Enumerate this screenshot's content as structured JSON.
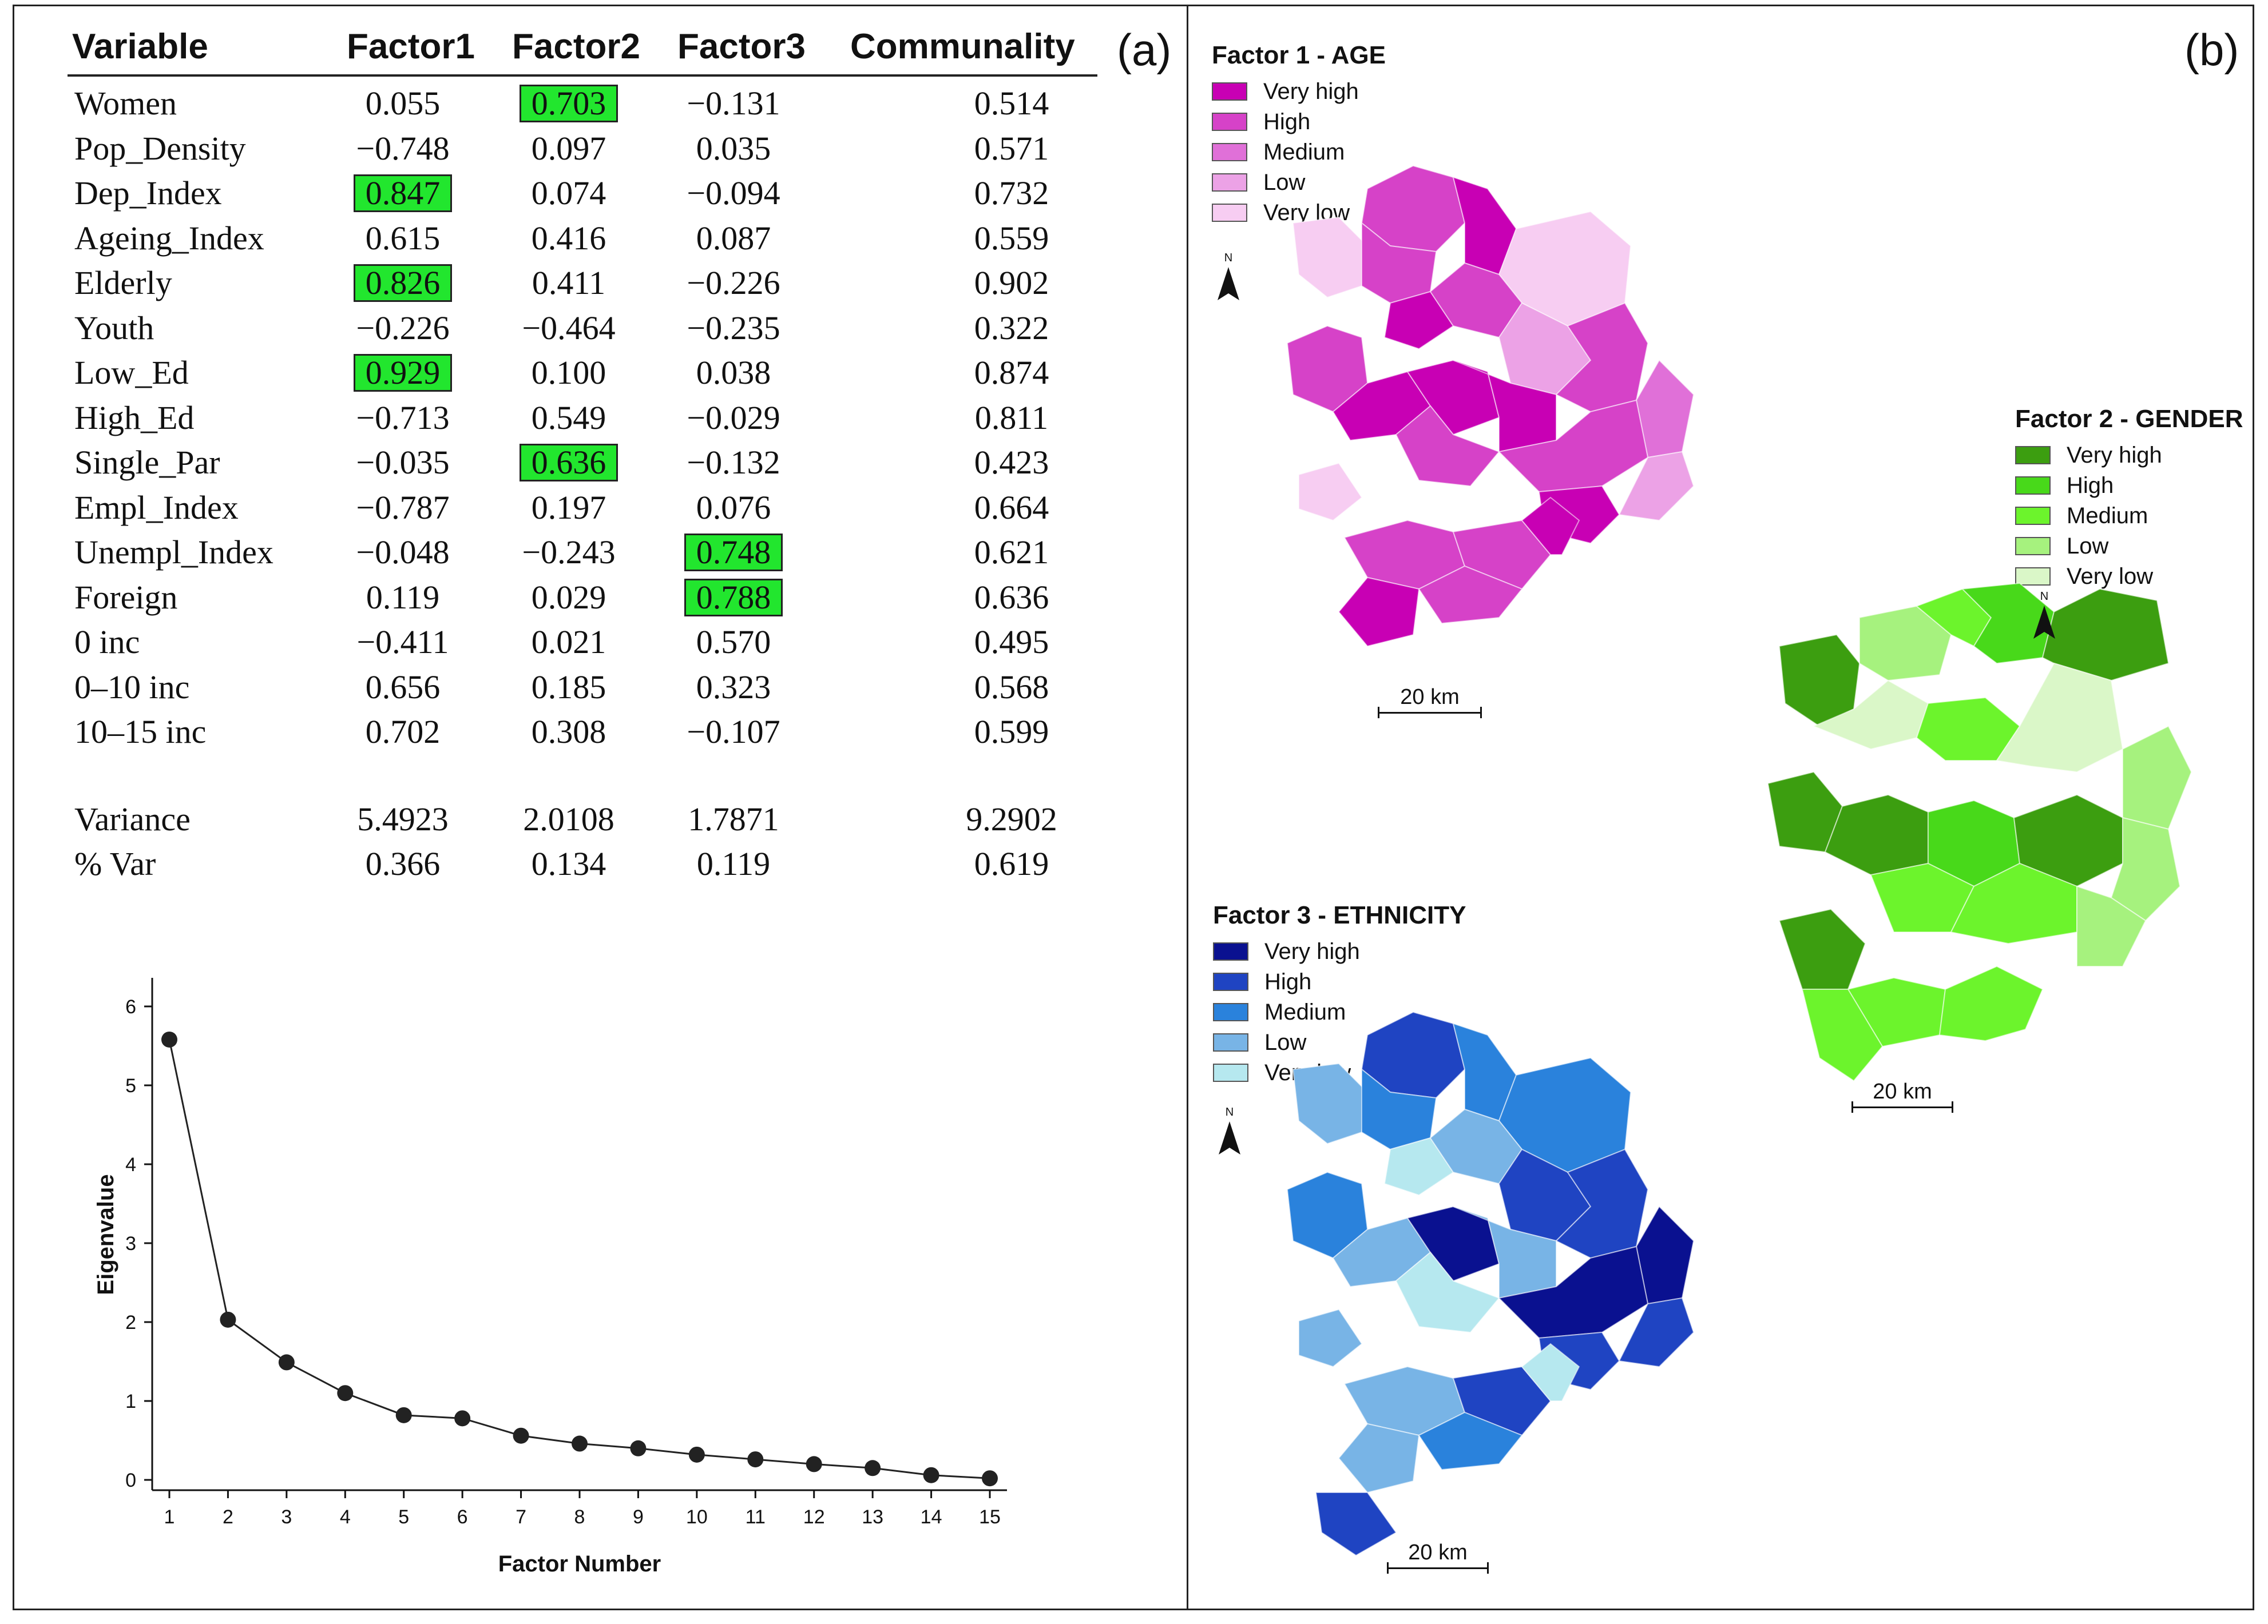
{
  "panel_a_label": "(a)",
  "panel_b_label": "(b)",
  "table": {
    "headers": [
      "Variable",
      "Factor1",
      "Factor2",
      "Factor3",
      "Communality"
    ],
    "rows": [
      {
        "variable": "Women",
        "f1": "0.055",
        "f2": "0.703",
        "f3": "−0.131",
        "comm": "0.514",
        "hl": [
          false,
          true,
          false
        ]
      },
      {
        "variable": "Pop_Density",
        "f1": "−0.748",
        "f2": "0.097",
        "f3": "0.035",
        "comm": "0.571",
        "hl": [
          false,
          false,
          false
        ]
      },
      {
        "variable": "Dep_Index",
        "f1": "0.847",
        "f2": "0.074",
        "f3": "−0.094",
        "comm": "0.732",
        "hl": [
          true,
          false,
          false
        ]
      },
      {
        "variable": "Ageing_Index",
        "f1": "0.615",
        "f2": "0.416",
        "f3": "0.087",
        "comm": "0.559",
        "hl": [
          false,
          false,
          false
        ]
      },
      {
        "variable": "Elderly",
        "f1": "0.826",
        "f2": "0.411",
        "f3": "−0.226",
        "comm": "0.902",
        "hl": [
          true,
          false,
          false
        ]
      },
      {
        "variable": "Youth",
        "f1": "−0.226",
        "f2": "−0.464",
        "f3": "−0.235",
        "comm": "0.322",
        "hl": [
          false,
          false,
          false
        ]
      },
      {
        "variable": "Low_Ed",
        "f1": "0.929",
        "f2": "0.100",
        "f3": "0.038",
        "comm": "0.874",
        "hl": [
          true,
          false,
          false
        ]
      },
      {
        "variable": "High_Ed",
        "f1": "−0.713",
        "f2": "0.549",
        "f3": "−0.029",
        "comm": "0.811",
        "hl": [
          false,
          false,
          false
        ]
      },
      {
        "variable": "Single_Par",
        "f1": "−0.035",
        "f2": "0.636",
        "f3": "−0.132",
        "comm": "0.423",
        "hl": [
          false,
          true,
          false
        ]
      },
      {
        "variable": "Empl_Index",
        "f1": "−0.787",
        "f2": "0.197",
        "f3": "0.076",
        "comm": "0.664",
        "hl": [
          false,
          false,
          false
        ]
      },
      {
        "variable": "Unempl_Index",
        "f1": "−0.048",
        "f2": "−0.243",
        "f3": "0.748",
        "comm": "0.621",
        "hl": [
          false,
          false,
          true
        ]
      },
      {
        "variable": "Foreign",
        "f1": "0.119",
        "f2": "0.029",
        "f3": "0.788",
        "comm": "0.636",
        "hl": [
          false,
          false,
          true
        ]
      },
      {
        "variable": "0 inc",
        "f1": "−0.411",
        "f2": "0.021",
        "f3": "0.570",
        "comm": "0.495",
        "hl": [
          false,
          false,
          false
        ]
      },
      {
        "variable": "0–10 inc",
        "f1": "0.656",
        "f2": "0.185",
        "f3": "0.323",
        "comm": "0.568",
        "hl": [
          false,
          false,
          false
        ]
      },
      {
        "variable": "10–15 inc",
        "f1": "0.702",
        "f2": "0.308",
        "f3": "−0.107",
        "comm": "0.599",
        "hl": [
          false,
          false,
          false
        ]
      }
    ],
    "summary": [
      {
        "variable": "Variance",
        "f1": "5.4923",
        "f2": "2.0108",
        "f3": "1.7871",
        "comm": "9.2902"
      },
      {
        "variable": "% Var",
        "f1": "0.366",
        "f2": "0.134",
        "f3": "0.119",
        "comm": "0.619"
      }
    ],
    "highlight_color": "#22e62e"
  },
  "chart_data": {
    "type": "line",
    "title": "",
    "xlabel": "Factor Number",
    "ylabel": "Eigenvalue",
    "x": [
      1,
      2,
      3,
      4,
      5,
      6,
      7,
      8,
      9,
      10,
      11,
      12,
      13,
      14,
      15
    ],
    "values": [
      5.58,
      2.03,
      1.49,
      1.1,
      0.82,
      0.78,
      0.56,
      0.46,
      0.4,
      0.32,
      0.26,
      0.2,
      0.15,
      0.06,
      0.02
    ],
    "xlim": [
      1,
      15
    ],
    "ylim": [
      0,
      6
    ],
    "yticks": [
      0,
      1,
      2,
      3,
      4,
      5,
      6
    ],
    "grid": false
  },
  "maps": {
    "scale_label": "20 km",
    "north_label": "N",
    "factor1": {
      "title": "Factor 1 - AGE",
      "classes": [
        {
          "label": "Very high",
          "color": "#c800b4"
        },
        {
          "label": "High",
          "color": "#d642c8"
        },
        {
          "label": "Medium",
          "color": "#e070d8"
        },
        {
          "label": "Low",
          "color": "#eca2e6"
        },
        {
          "label": "Very low",
          "color": "#f7cdf2"
        }
      ]
    },
    "factor2": {
      "title": "Factor 2 - GENDER",
      "classes": [
        {
          "label": "Very high",
          "color": "#3c9e10"
        },
        {
          "label": "High",
          "color": "#48d91a"
        },
        {
          "label": "Medium",
          "color": "#6cf42c"
        },
        {
          "label": "Low",
          "color": "#a6f27e"
        },
        {
          "label": "Very low",
          "color": "#daf7c8"
        }
      ]
    },
    "factor3": {
      "title": "Factor 3 - ETHNICITY",
      "classes": [
        {
          "label": "Very high",
          "color": "#0a1190"
        },
        {
          "label": "High",
          "color": "#1f44c2"
        },
        {
          "label": "Medium",
          "color": "#2a82dc"
        },
        {
          "label": "Low",
          "color": "#78b4e6"
        },
        {
          "label": "Very low",
          "color": "#b6e8ef"
        }
      ]
    }
  }
}
